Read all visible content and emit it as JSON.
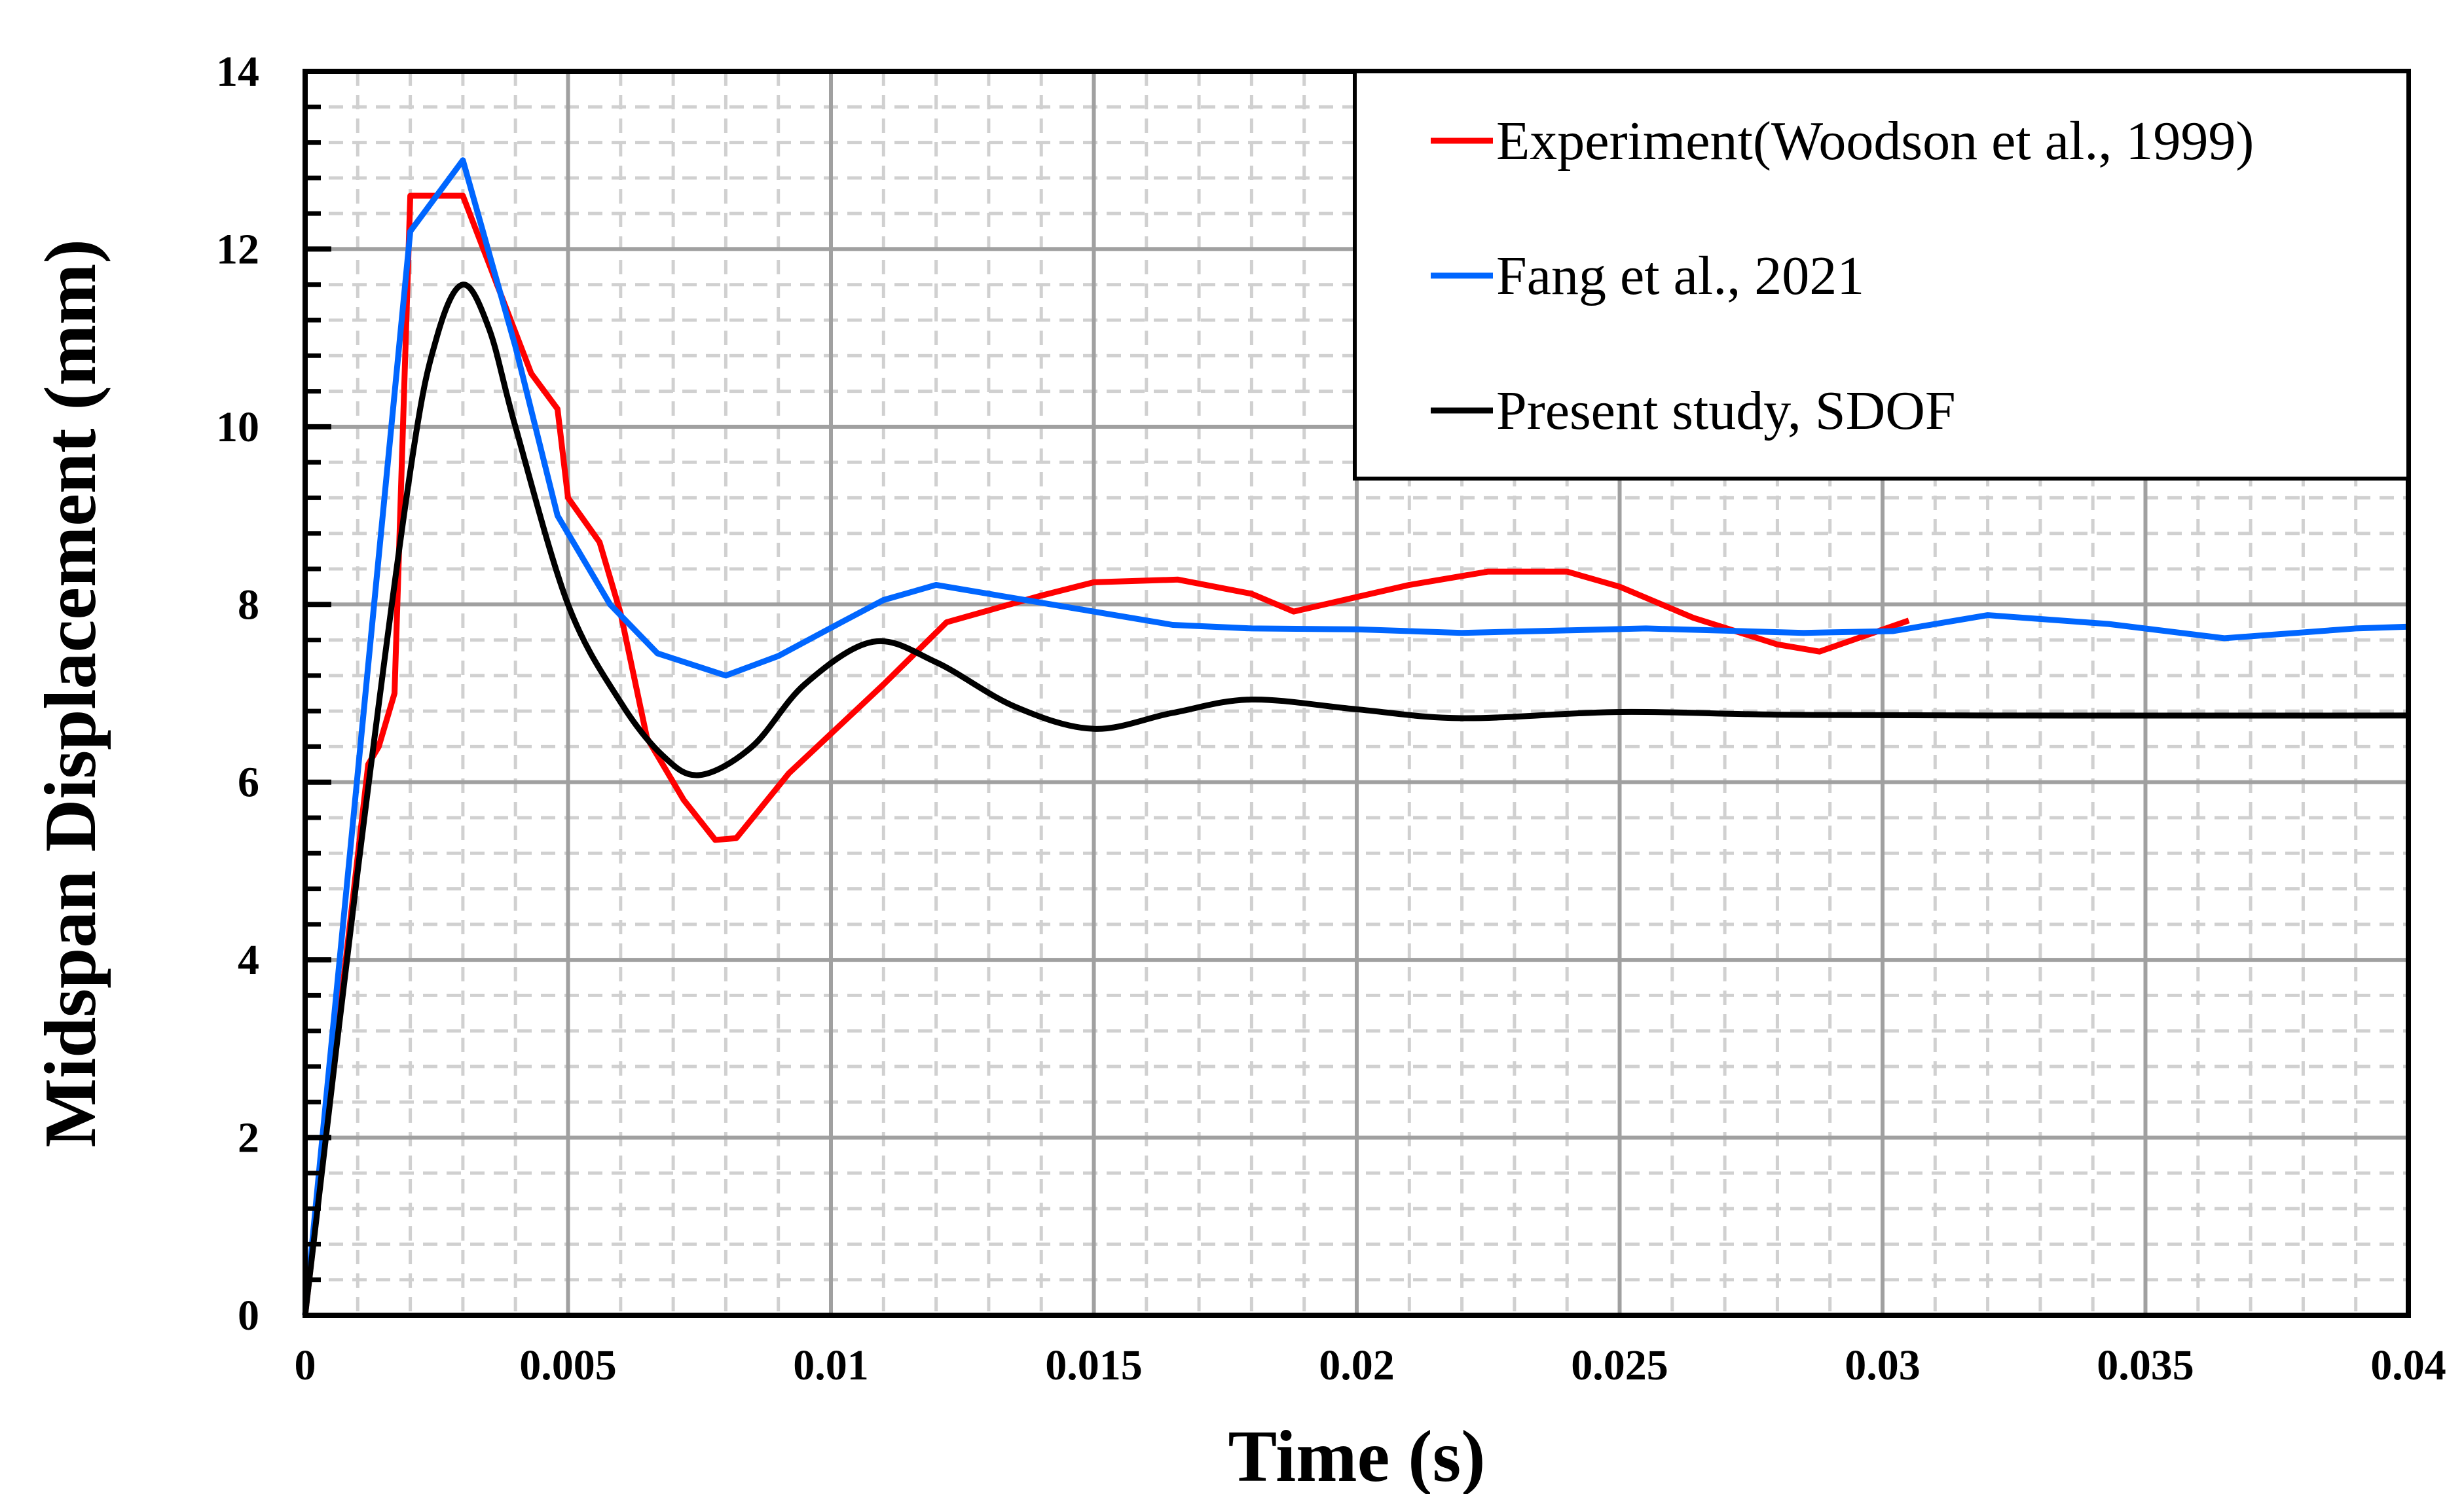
{
  "chart_data": {
    "type": "line",
    "title": "",
    "xlabel": "Time (s)",
    "ylabel": "Midspan Displacement (mm)",
    "xlim": [
      0,
      0.04
    ],
    "ylim": [
      0,
      14
    ],
    "grid": true,
    "minor_grid": true,
    "legend_position": "top-right",
    "x_ticks": [
      "0",
      "0.005",
      "0.01",
      "0.015",
      "0.02",
      "0.025",
      "0.03",
      "0.035",
      "0.04"
    ],
    "y_ticks": [
      "0",
      "2",
      "4",
      "6",
      "8",
      "10",
      "12",
      "14"
    ],
    "series": [
      {
        "name": "Experiment(Woodson et al., 1999)",
        "color": "#ff0000",
        "smooth": false,
        "x": [
          0,
          0.0012,
          0.0014,
          0.0017,
          0.002,
          0.003,
          0.0043,
          0.0048,
          0.005,
          0.0056,
          0.006,
          0.0065,
          0.0072,
          0.0078,
          0.0082,
          0.0092,
          0.011,
          0.0122,
          0.014,
          0.015,
          0.0166,
          0.018,
          0.0188,
          0.021,
          0.0225,
          0.024,
          0.025,
          0.0264,
          0.028,
          0.0288,
          0.0305
        ],
        "y": [
          0,
          6.2,
          6.4,
          7.0,
          12.6,
          12.6,
          10.6,
          10.2,
          9.2,
          8.7,
          7.9,
          6.5,
          5.8,
          5.35,
          5.37,
          6.1,
          7.1,
          7.8,
          8.1,
          8.25,
          8.28,
          8.12,
          7.92,
          8.22,
          8.37,
          8.37,
          8.2,
          7.85,
          7.55,
          7.47,
          7.82
        ]
      },
      {
        "name": "Fang et al., 2021",
        "color": "#0066ff",
        "smooth": false,
        "x": [
          0,
          0.002,
          0.003,
          0.004,
          0.0048,
          0.0058,
          0.0067,
          0.008,
          0.009,
          0.0102,
          0.011,
          0.012,
          0.015,
          0.0165,
          0.018,
          0.02,
          0.022,
          0.0255,
          0.0285,
          0.0302,
          0.032,
          0.0343,
          0.0365,
          0.039,
          0.04
        ],
        "y": [
          0,
          12.2,
          13.0,
          10.9,
          9.0,
          8.0,
          7.45,
          7.2,
          7.42,
          7.8,
          8.05,
          8.22,
          7.92,
          7.77,
          7.73,
          7.72,
          7.68,
          7.73,
          7.68,
          7.7,
          7.88,
          7.78,
          7.62,
          7.73,
          7.75
        ]
      },
      {
        "name": "Present study, SDOF",
        "color": "#000000",
        "smooth": true,
        "x": [
          0,
          0.001,
          0.002,
          0.0025,
          0.003,
          0.0035,
          0.004,
          0.005,
          0.006,
          0.0068,
          0.0075,
          0.0085,
          0.0095,
          0.0108,
          0.012,
          0.0135,
          0.015,
          0.0165,
          0.018,
          0.02,
          0.022,
          0.025,
          0.028,
          0.032,
          0.04
        ],
        "y": [
          0,
          5,
          9.5,
          11,
          11.6,
          11.1,
          10,
          8.0,
          6.9,
          6.3,
          6.08,
          6.4,
          7.1,
          7.58,
          7.35,
          6.85,
          6.6,
          6.78,
          6.93,
          6.82,
          6.72,
          6.79,
          6.76,
          6.75,
          6.75
        ]
      }
    ]
  }
}
